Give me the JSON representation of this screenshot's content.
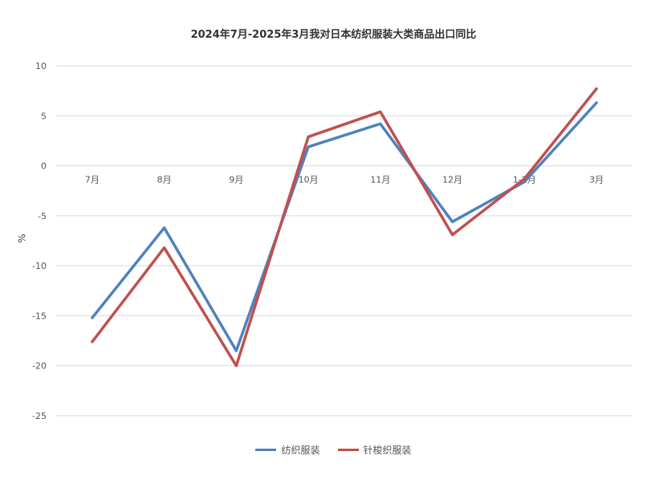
{
  "chart_data": {
    "type": "line",
    "title": "2024年7月-2025年3月我对日本纺织服装大类商品出口同比",
    "ylabel": "%",
    "xlabel": "",
    "categories": [
      "7月",
      "8月",
      "9月",
      "10月",
      "11月",
      "12月",
      "1-2月",
      "3月"
    ],
    "ylim": [
      -25,
      10
    ],
    "yticks": [
      10,
      5,
      0,
      -5,
      -10,
      -15,
      -20,
      -25
    ],
    "grid": true,
    "legend_position": "bottom",
    "series": [
      {
        "name": "纺织服装",
        "color": "#4f81bd",
        "values": [
          -15.2,
          -6.2,
          -18.5,
          1.9,
          4.2,
          -5.6,
          -1.6,
          6.3
        ]
      },
      {
        "name": "针梭织服装",
        "color": "#c0504d",
        "values": [
          -17.6,
          -8.2,
          -20.0,
          2.9,
          5.4,
          -6.9,
          -1.3,
          7.7
        ]
      }
    ]
  }
}
